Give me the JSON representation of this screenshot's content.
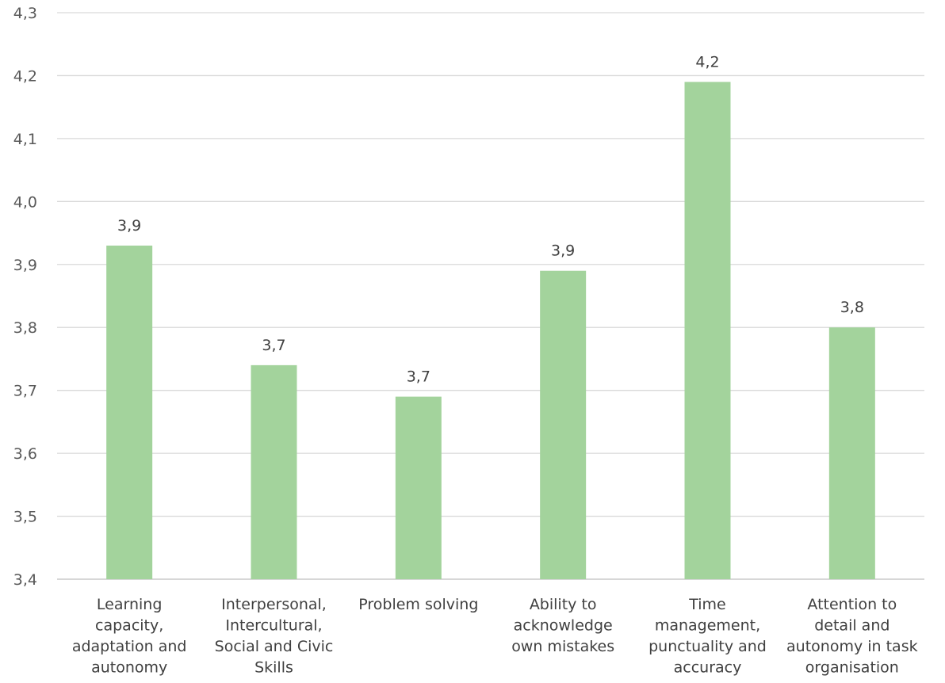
{
  "chart_data": {
    "type": "bar",
    "categories": [
      [
        "Learning",
        "capacity,",
        "adaptation and",
        "autonomy"
      ],
      [
        "Interpersonal,",
        "Intercultural,",
        "Social and Civic",
        "Skills"
      ],
      [
        "Problem solving"
      ],
      [
        "Ability to",
        "acknowledge",
        "own mistakes"
      ],
      [
        "Time",
        "management,",
        "punctuality and",
        "accuracy"
      ],
      [
        "Attention to",
        "detail and",
        "autonomy in task",
        "organisation"
      ]
    ],
    "values": [
      3.93,
      3.74,
      3.69,
      3.89,
      4.19,
      3.8
    ],
    "data_labels": [
      "3,9",
      "3,7",
      "3,7",
      "3,9",
      "4,2",
      "3,8"
    ],
    "ylim": [
      3.4,
      4.3
    ],
    "yticks": [
      3.4,
      3.5,
      3.6,
      3.7,
      3.8,
      3.9,
      4.0,
      4.1,
      4.2,
      4.3
    ],
    "ytick_labels": [
      "3,4",
      "3,5",
      "3,6",
      "3,7",
      "3,8",
      "3,9",
      "4,0",
      "4,1",
      "4,2",
      "4,3"
    ],
    "bar_color": "#a3d39c",
    "grid": true,
    "legend": "none",
    "title": "",
    "xlabel": "",
    "ylabel": ""
  }
}
